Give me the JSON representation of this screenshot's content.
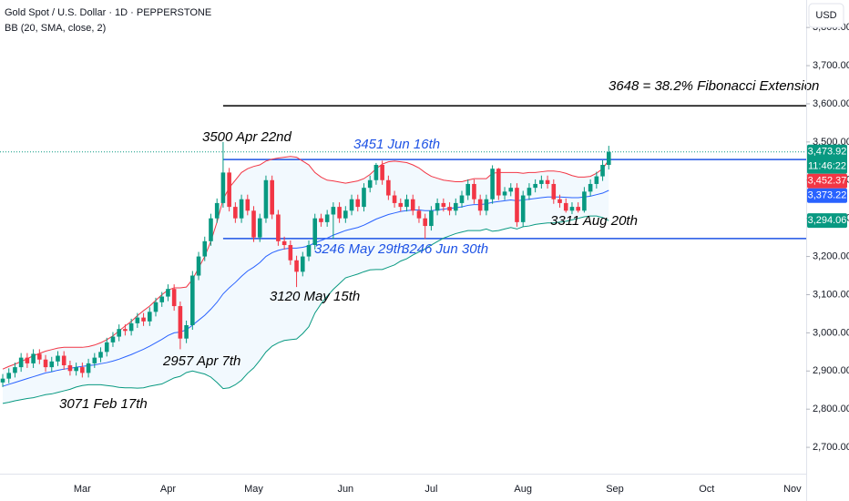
{
  "chart_data": {
    "type": "candlestick",
    "title": "Gold Spot / U.S. Dollar · 1D · PEPPERSTONE",
    "indicator": "BB (20, SMA, close, 2)",
    "currency": "USD",
    "categories": [
      null,
      null,
      null,
      null,
      null,
      null,
      null,
      null,
      null,
      null,
      null,
      null,
      null,
      "Mar",
      null,
      null,
      null,
      null,
      null,
      null,
      null,
      null,
      null,
      null,
      null,
      null,
      null,
      "Apr",
      null,
      null,
      null,
      null,
      null,
      null,
      null,
      null,
      null,
      null,
      null,
      null,
      null,
      "May",
      null,
      null,
      null,
      null,
      null,
      null,
      null,
      null,
      null,
      null,
      null,
      null,
      null,
      null,
      "Jun",
      null,
      null,
      null,
      null,
      null,
      null,
      null,
      null,
      null,
      null,
      null,
      null,
      null,
      "Jul",
      null,
      null,
      null,
      null,
      null,
      null,
      null,
      null,
      null,
      null,
      null,
      null,
      null,
      null,
      "Aug",
      null,
      null,
      null,
      null,
      null,
      null,
      null,
      null,
      null,
      null,
      null,
      null,
      null,
      null,
      "Sep",
      null,
      null,
      null,
      null,
      null,
      null,
      null,
      null,
      null,
      null,
      null,
      null,
      null,
      null,
      "Oct",
      null,
      null,
      null,
      null,
      null,
      null,
      null,
      null,
      null,
      null,
      null,
      null,
      null,
      "Nov",
      null,
      null
    ],
    "ylim": [
      2631,
      3872
    ],
    "yticks": [
      {
        "value": 2700,
        "label": "2,700.00"
      },
      {
        "value": 2800,
        "label": "2,800.00"
      },
      {
        "value": 2900,
        "label": "2,900.00"
      },
      {
        "value": 3000,
        "label": "3,000.00"
      },
      {
        "value": 3100,
        "label": "3,100.00"
      },
      {
        "value": 3200,
        "label": "3,200.00"
      },
      {
        "value": 3300,
        "label": "3,300.00"
      },
      {
        "value": 3400,
        "label": "3,400.00"
      },
      {
        "value": 3500,
        "label": "3,500.00"
      },
      {
        "value": 3600,
        "label": "3,600.00"
      },
      {
        "value": 3700,
        "label": "3,700.00"
      },
      {
        "value": 3800,
        "label": "3,800.00"
      }
    ],
    "grid": false,
    "candles": {
      "up_color": "#089981",
      "down_color": "#f23645",
      "last_label": "3,473.92",
      "countdown": "11:46:22",
      "open": [
        2870,
        2880,
        2895,
        2910,
        2935,
        2920,
        2945,
        2930,
        2910,
        2925,
        2940,
        2915,
        2900,
        2910,
        2895,
        2920,
        2935,
        2950,
        2975,
        2990,
        3010,
        3005,
        3025,
        3040,
        3030,
        3055,
        3080,
        3095,
        3115,
        3070,
        2985,
        3020,
        3150,
        3200,
        3240,
        3300,
        3340,
        3420,
        3330,
        3300,
        3350,
        3320,
        3250,
        3300,
        3400,
        3310,
        3240,
        3230,
        3190,
        3160,
        3200,
        3230,
        3300,
        3290,
        3310,
        3330,
        3300,
        3320,
        3350,
        3330,
        3380,
        3400,
        3440,
        3400,
        3360,
        3340,
        3330,
        3350,
        3320,
        3300,
        3280,
        3320,
        3340,
        3330,
        3320,
        3340,
        3360,
        3390,
        3350,
        3320,
        3350,
        3430,
        3360,
        3370,
        3380,
        3290,
        3360,
        3380,
        3390,
        3400,
        3390,
        3350,
        3340,
        3320,
        3330,
        3320,
        3370,
        3390,
        3410,
        3440,
        null,
        null,
        null,
        null,
        null,
        null,
        null,
        null,
        null,
        null,
        null,
        null,
        null,
        null,
        null,
        null,
        null,
        null,
        null,
        null,
        null,
        null,
        null,
        null,
        null,
        null,
        null,
        null,
        null,
        null,
        null,
        null
      ],
      "high": [
        2892,
        2907,
        2922,
        2947,
        2947,
        2957,
        2957,
        2942,
        2937,
        2952,
        2952,
        2927,
        2922,
        2922,
        2932,
        2947,
        2962,
        2987,
        3002,
        3022,
        3022,
        3037,
        3052,
        3052,
        3067,
        3092,
        3107,
        3127,
        3127,
        3082,
        3032,
        3162,
        3212,
        3252,
        3312,
        3352,
        3500,
        3432,
        3342,
        3362,
        3362,
        3332,
        3312,
        3412,
        3412,
        3322,
        3252,
        3242,
        3202,
        3212,
        3242,
        3312,
        3312,
        3322,
        3342,
        3342,
        3332,
        3362,
        3362,
        3392,
        3412,
        3445,
        3451,
        3412,
        3372,
        3352,
        3362,
        3362,
        3332,
        3312,
        3332,
        3352,
        3352,
        3342,
        3352,
        3372,
        3402,
        3402,
        3362,
        3362,
        3439,
        3432,
        3382,
        3392,
        3392,
        3372,
        3392,
        3402,
        3412,
        3412,
        3402,
        3362,
        3352,
        3342,
        3342,
        3382,
        3402,
        3422,
        3452,
        3490,
        null,
        null,
        null,
        null,
        null,
        null,
        null,
        null,
        null,
        null,
        null,
        null,
        null,
        null,
        null,
        null,
        null,
        null,
        null,
        null,
        null,
        null,
        null,
        null,
        null,
        null,
        null,
        null,
        null,
        null,
        null,
        null
      ],
      "low": [
        2858,
        2868,
        2883,
        2898,
        2908,
        2908,
        2918,
        2898,
        2898,
        2913,
        2903,
        2888,
        2888,
        2883,
        2883,
        2908,
        2923,
        2938,
        2963,
        2978,
        2993,
        2993,
        3013,
        3018,
        3018,
        3043,
        3068,
        3083,
        3058,
        2957,
        2973,
        3008,
        3138,
        3188,
        3228,
        3288,
        3328,
        3318,
        3288,
        3288,
        3308,
        3238,
        3238,
        3288,
        3298,
        3228,
        3218,
        3178,
        3120,
        3148,
        3188,
        3218,
        3278,
        3278,
        3246,
        3288,
        3288,
        3308,
        3318,
        3318,
        3368,
        3388,
        3388,
        3348,
        3328,
        3318,
        3318,
        3308,
        3288,
        3246,
        3268,
        3308,
        3318,
        3308,
        3308,
        3328,
        3348,
        3338,
        3308,
        3308,
        3338,
        3348,
        3348,
        3358,
        3278,
        3278,
        3348,
        3368,
        3378,
        3378,
        3338,
        3328,
        3315,
        3311,
        3315,
        3315,
        3358,
        3378,
        3398,
        3428,
        null,
        null,
        null,
        null,
        null,
        null,
        null,
        null,
        null,
        null,
        null,
        null,
        null,
        null,
        null,
        null,
        null,
        null,
        null,
        null,
        null,
        null,
        null,
        null,
        null,
        null,
        null,
        null,
        null,
        null,
        null,
        null
      ],
      "close": [
        2880,
        2895,
        2910,
        2935,
        2920,
        2945,
        2930,
        2910,
        2925,
        2940,
        2915,
        2900,
        2910,
        2895,
        2920,
        2935,
        2950,
        2975,
        2990,
        3010,
        3005,
        3025,
        3040,
        3030,
        3055,
        3080,
        3095,
        3115,
        3070,
        2985,
        3020,
        3150,
        3200,
        3240,
        3300,
        3340,
        3420,
        3330,
        3300,
        3350,
        3320,
        3250,
        3300,
        3400,
        3310,
        3240,
        3230,
        3190,
        3160,
        3200,
        3230,
        3300,
        3290,
        3310,
        3330,
        3300,
        3320,
        3350,
        3330,
        3380,
        3400,
        3440,
        3400,
        3360,
        3340,
        3330,
        3350,
        3320,
        3300,
        3280,
        3320,
        3340,
        3330,
        3320,
        3340,
        3360,
        3390,
        3350,
        3320,
        3350,
        3430,
        3360,
        3370,
        3380,
        3290,
        3360,
        3380,
        3390,
        3400,
        3390,
        3350,
        3340,
        3320,
        3330,
        3320,
        3370,
        3390,
        3410,
        3440,
        3473.92,
        null,
        null,
        null,
        null,
        null,
        null,
        null,
        null,
        null,
        null,
        null,
        null,
        null,
        null,
        null,
        null,
        null,
        null,
        null,
        null,
        null,
        null,
        null,
        null,
        null,
        null,
        null,
        null,
        null,
        null,
        null,
        null
      ]
    },
    "bands": [
      {
        "color": "#f23645",
        "last_label": "3,452.37",
        "values": [
          2905,
          2912,
          2918,
          2925,
          2932,
          2940,
          2946,
          2952,
          2956,
          2960,
          2962,
          2962,
          2962,
          2962,
          2964,
          2968,
          2974,
          2982,
          2992,
          3005,
          3018,
          3030,
          3045,
          3058,
          3070,
          3085,
          3100,
          3112,
          3118,
          3118,
          3120,
          3140,
          3170,
          3200,
          3240,
          3290,
          3350,
          3380,
          3400,
          3420,
          3430,
          3436,
          3440,
          3450,
          3455,
          3458,
          3460,
          3462,
          3460,
          3450,
          3440,
          3420,
          3408,
          3400,
          3398,
          3395,
          3392,
          3395,
          3398,
          3404,
          3415,
          3430,
          3442,
          3448,
          3450,
          3448,
          3446,
          3440,
          3432,
          3420,
          3410,
          3405,
          3400,
          3398,
          3396,
          3396,
          3400,
          3404,
          3404,
          3404,
          3418,
          3420,
          3420,
          3420,
          3420,
          3418,
          3420,
          3420,
          3422,
          3424,
          3424,
          3422,
          3418,
          3412,
          3408,
          3408,
          3410,
          3418,
          3430,
          3452.37,
          null,
          null,
          null,
          null,
          null,
          null,
          null,
          null,
          null,
          null,
          null,
          null,
          null,
          null,
          null,
          null,
          null,
          null,
          null,
          null,
          null,
          null,
          null,
          null,
          null,
          null,
          null,
          null,
          null,
          null,
          null,
          null
        ]
      },
      {
        "color": "#2962ff",
        "last_label": "3,373.22",
        "values": [
          2860,
          2865,
          2870,
          2875,
          2880,
          2885,
          2890,
          2895,
          2898,
          2902,
          2905,
          2907,
          2910,
          2912,
          2914,
          2916,
          2919,
          2922,
          2926,
          2931,
          2937,
          2943,
          2950,
          2957,
          2965,
          2974,
          2983,
          2993,
          3000,
          3002,
          3008,
          3020,
          3033,
          3046,
          3062,
          3080,
          3102,
          3118,
          3132,
          3148,
          3162,
          3172,
          3184,
          3200,
          3210,
          3216,
          3220,
          3222,
          3222,
          3224,
          3228,
          3236,
          3242,
          3248,
          3256,
          3262,
          3268,
          3272,
          3276,
          3282,
          3290,
          3298,
          3304,
          3310,
          3314,
          3318,
          3320,
          3322,
          3322,
          3320,
          3320,
          3322,
          3324,
          3326,
          3328,
          3330,
          3334,
          3336,
          3336,
          3338,
          3342,
          3344,
          3346,
          3348,
          3346,
          3348,
          3350,
          3352,
          3354,
          3356,
          3356,
          3356,
          3355,
          3354,
          3354,
          3356,
          3358,
          3362,
          3366,
          3373.22,
          null,
          null,
          null,
          null,
          null,
          null,
          null,
          null,
          null,
          null,
          null,
          null,
          null,
          null,
          null,
          null,
          null,
          null,
          null,
          null,
          null,
          null,
          null,
          null,
          null,
          null,
          null,
          null,
          null,
          null,
          null,
          null
        ]
      },
      {
        "color": "#089981",
        "last_label": "3,294.06",
        "values": [
          2815,
          2818,
          2822,
          2825,
          2828,
          2830,
          2834,
          2838,
          2840,
          2844,
          2848,
          2852,
          2858,
          2862,
          2864,
          2864,
          2864,
          2862,
          2860,
          2857,
          2856,
          2856,
          2855,
          2856,
          2860,
          2863,
          2866,
          2874,
          2882,
          2886,
          2896,
          2900,
          2896,
          2892,
          2884,
          2870,
          2854,
          2856,
          2864,
          2876,
          2894,
          2908,
          2928,
          2950,
          2965,
          2974,
          2980,
          2982,
          2984,
          2998,
          3016,
          3052,
          3076,
          3096,
          3114,
          3129,
          3144,
          3149,
          3154,
          3160,
          3165,
          3166,
          3166,
          3172,
          3178,
          3188,
          3194,
          3204,
          3212,
          3220,
          3230,
          3239,
          3248,
          3254,
          3260,
          3264,
          3268,
          3268,
          3268,
          3272,
          3266,
          3268,
          3272,
          3276,
          3272,
          3278,
          3280,
          3284,
          3286,
          3288,
          3288,
          3290,
          3292,
          3296,
          3300,
          3304,
          3306,
          3306,
          3302,
          3294.06,
          null,
          null,
          null,
          null,
          null,
          null,
          null,
          null,
          null,
          null,
          null,
          null,
          null,
          null,
          null,
          null,
          null,
          null,
          null,
          null,
          null,
          null,
          null,
          null,
          null,
          null,
          null,
          null,
          null,
          null,
          null,
          null
        ]
      }
    ],
    "levels": [
      {
        "value": 3595,
        "color": "#000000"
      },
      {
        "value": 3454,
        "color": "#1e53e5"
      },
      {
        "value": 3247,
        "color": "#1e53e5"
      }
    ],
    "annotations": [
      {
        "text": "3648 = 38.2% Fibonacci Extension",
        "color": "#000000"
      },
      {
        "text": "3500 Apr 22nd",
        "color": "#000000"
      },
      {
        "text": "3451 Jun 16th",
        "color": "#1e53e5"
      },
      {
        "text": "3246 May 29th",
        "color": "#1e53e5"
      },
      {
        "text": "3246 Jun 30th",
        "color": "#1e53e5"
      },
      {
        "text": "3120 May 15th",
        "color": "#000000"
      },
      {
        "text": "2957 Apr 7th",
        "color": "#000000"
      },
      {
        "text": "3071 Feb 17th",
        "color": "#000000"
      },
      {
        "text": "3311 Aug 20th",
        "color": "#000000"
      }
    ]
  }
}
